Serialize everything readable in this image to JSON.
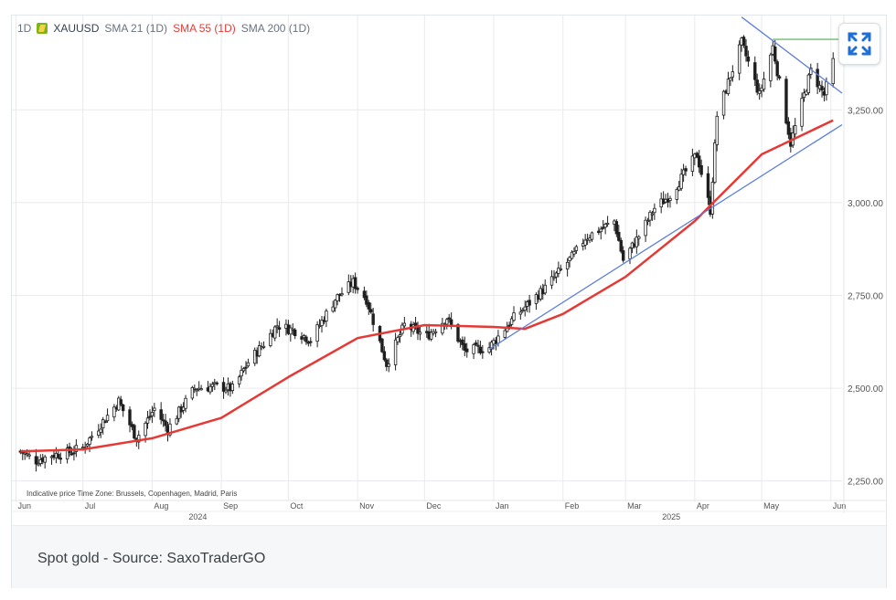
{
  "legend": {
    "interval": "1D",
    "symbol": "XAUUSD",
    "sma21": "SMA 21 (1D)",
    "sma55": "SMA 55 (1D)",
    "sma200": "SMA 200 (1D)"
  },
  "footer_note": "Indicative price    Time Zone: Brussels, Copenhagen, Madrid, Paris",
  "caption": "Spot gold - Source: SaxoTraderGO",
  "icons": {
    "expand": "expand-arrows-icon",
    "symbol_logo": "gold-bar-icon"
  },
  "colors": {
    "up": "#ffffff",
    "down": "#1f1f1f",
    "sma55": "#e53935",
    "trendline": "#5b7fdc",
    "resistance": "#6abf69",
    "grid": "#e8eaed"
  },
  "chart_data": {
    "type": "candlestick",
    "title": "XAUUSD",
    "y_ticks": [
      2250,
      2500,
      2750,
      3000,
      3250
    ],
    "y_tick_labels": [
      "2,250.00",
      "2,500.00",
      "2,750.00",
      "3,000.00",
      "3,250.00"
    ],
    "ylim": [
      2200,
      3450
    ],
    "x_ticks": [
      "Jun",
      "Jul",
      "Aug",
      "Sep",
      "Oct",
      "Nov",
      "Dec",
      "Jan",
      "Feb",
      "Mar",
      "Apr",
      "May",
      "Jun"
    ],
    "x_years": [
      "2024",
      "2025"
    ],
    "grid": true,
    "close_path": [
      [
        "2024-06-03",
        2330
      ],
      [
        "2024-06-10",
        2305
      ],
      [
        "2024-06-17",
        2320
      ],
      [
        "2024-06-24",
        2326
      ],
      [
        "2024-07-01",
        2340
      ],
      [
        "2024-07-08",
        2395
      ],
      [
        "2024-07-17",
        2465
      ],
      [
        "2024-07-25",
        2365
      ],
      [
        "2024-08-02",
        2445
      ],
      [
        "2024-08-08",
        2390
      ],
      [
        "2024-08-20",
        2500
      ],
      [
        "2024-08-30",
        2505
      ],
      [
        "2024-09-06",
        2498
      ],
      [
        "2024-09-13",
        2570
      ],
      [
        "2024-09-20",
        2620
      ],
      [
        "2024-09-26",
        2670
      ],
      [
        "2024-10-04",
        2655
      ],
      [
        "2024-10-11",
        2630
      ],
      [
        "2024-10-22",
        2740
      ],
      [
        "2024-10-30",
        2785
      ],
      [
        "2024-11-05",
        2740
      ],
      [
        "2024-11-14",
        2565
      ],
      [
        "2024-11-22",
        2670
      ],
      [
        "2024-12-02",
        2640
      ],
      [
        "2024-12-11",
        2690
      ],
      [
        "2024-12-19",
        2600
      ],
      [
        "2024-12-30",
        2610
      ],
      [
        "2025-01-10",
        2690
      ],
      [
        "2025-01-24",
        2770
      ],
      [
        "2025-02-06",
        2860
      ],
      [
        "2025-02-11",
        2905
      ],
      [
        "2025-02-24",
        2950
      ],
      [
        "2025-02-28",
        2845
      ],
      [
        "2025-03-07",
        2910
      ],
      [
        "2025-03-14",
        2985
      ],
      [
        "2025-03-21",
        3020
      ],
      [
        "2025-04-02",
        3130
      ],
      [
        "2025-04-08",
        2980
      ],
      [
        "2025-04-11",
        3235
      ],
      [
        "2025-04-22",
        3430
      ],
      [
        "2025-04-30",
        3290
      ],
      [
        "2025-05-06",
        3420
      ],
      [
        "2025-05-14",
        3160
      ],
      [
        "2025-05-23",
        3355
      ],
      [
        "2025-05-29",
        3290
      ],
      [
        "2025-06-02",
        3380
      ]
    ],
    "sma55_path": [
      [
        "2024-06-03",
        2330
      ],
      [
        "2024-07-01",
        2335
      ],
      [
        "2024-08-01",
        2365
      ],
      [
        "2024-09-01",
        2420
      ],
      [
        "2024-10-01",
        2530
      ],
      [
        "2024-11-01",
        2635
      ],
      [
        "2024-12-01",
        2670
      ],
      [
        "2025-01-01",
        2665
      ],
      [
        "2025-01-15",
        2660
      ],
      [
        "2025-02-01",
        2700
      ],
      [
        "2025-03-01",
        2800
      ],
      [
        "2025-04-01",
        2950
      ],
      [
        "2025-05-01",
        3130
      ],
      [
        "2025-06-02",
        3222
      ]
    ],
    "trendlines": [
      {
        "name": "",
        "from": [
          "2024-12-30",
          2605
        ],
        "to": [
          "2025-06-06",
          3210
        ]
      },
      {
        "name": "",
        "from": [
          "2025-04-22",
          3500
        ],
        "to": [
          "2025-06-06",
          3295
        ]
      }
    ],
    "resistance": {
      "from": [
        "2025-05-06",
        3440
      ],
      "to": [
        "2025-06-06",
        3440
      ]
    }
  }
}
